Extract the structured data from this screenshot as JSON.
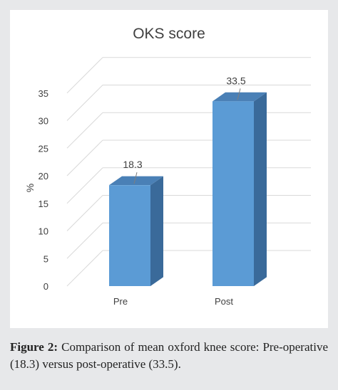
{
  "chart_data": {
    "type": "bar",
    "title": "OKS score",
    "ylabel": "%",
    "xlabel": "",
    "categories": [
      "Pre",
      "Post"
    ],
    "values": [
      18.3,
      33.5
    ],
    "data_labels": [
      "18.3",
      "33.5"
    ],
    "yticks": [
      "0",
      "5",
      "10",
      "15",
      "20",
      "25",
      "30",
      "35"
    ],
    "ylim": [
      0,
      35
    ],
    "grid": true,
    "style": "3d-column",
    "colors": {
      "bar_front": "#5b9bd5",
      "bar_side": "#3a6a9a",
      "bar_top": "#4a80b6",
      "grid": "#d9d9d9"
    }
  },
  "caption": {
    "label": "Figure 2:",
    "text": "Comparison of mean oxford knee score: Pre-operative (18.3) versus post-operative (33.5)."
  }
}
